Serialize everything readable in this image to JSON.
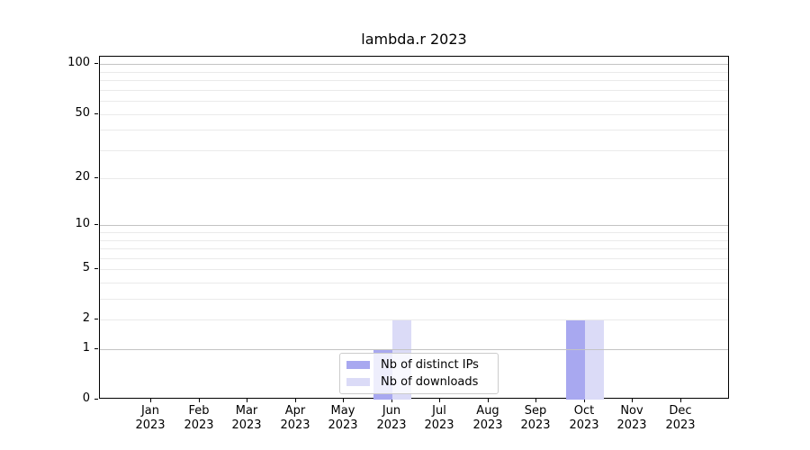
{
  "chart_data": {
    "type": "bar",
    "title": "lambda.r 2023",
    "categories": [
      "Jan 2023",
      "Feb 2023",
      "Mar 2023",
      "Apr 2023",
      "May 2023",
      "Jun 2023",
      "Jul 2023",
      "Aug 2023",
      "Sep 2023",
      "Oct 2023",
      "Nov 2023",
      "Dec 2023"
    ],
    "series": [
      {
        "name": "Nb of distinct IPs",
        "color": "#a8a8f0",
        "values": [
          0,
          0,
          0,
          0,
          0,
          1,
          0,
          0,
          0,
          2,
          0,
          0
        ]
      },
      {
        "name": "Nb of downloads",
        "color": "#dbdbf7",
        "values": [
          0,
          0,
          0,
          0,
          0,
          2,
          0,
          0,
          0,
          2,
          0,
          0
        ]
      }
    ],
    "yscale": "log1p",
    "ylim": [
      0,
      111
    ],
    "y_axis": {
      "tick_labels": [
        0,
        1,
        2,
        5,
        10,
        20,
        50,
        100
      ],
      "major_gridlines": [
        1,
        10,
        100
      ],
      "minor_gridlines": [
        2,
        3,
        4,
        5,
        6,
        7,
        8,
        9,
        20,
        30,
        40,
        50,
        60,
        70,
        80,
        90
      ]
    },
    "legend": {
      "position": "lower-center",
      "entries": [
        "Nb of distinct IPs",
        "Nb of downloads"
      ]
    },
    "grid": true,
    "grid_above_bars": true
  }
}
